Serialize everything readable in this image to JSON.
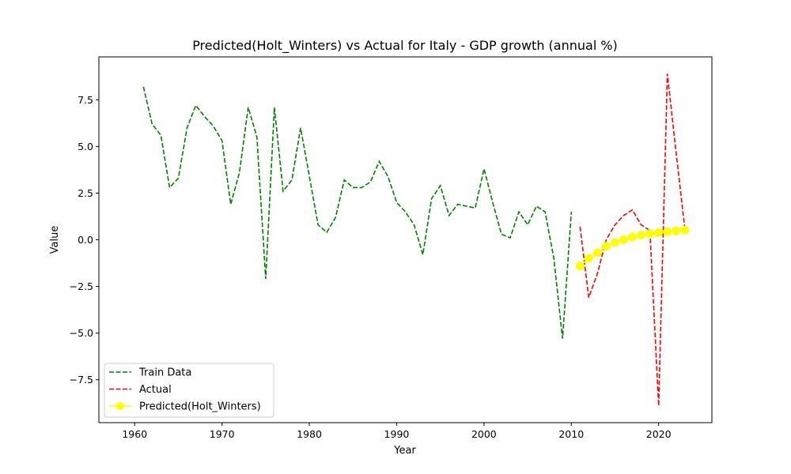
{
  "chart_data": {
    "type": "line",
    "title": "Predicted(Holt_Winters) vs Actual for Italy - GDP growth (annual %)",
    "xlabel": "Year",
    "ylabel": "Value",
    "xlim": [
      1955.9,
      2026.1
    ],
    "ylim": [
      -9.8,
      9.8
    ],
    "x_ticks": [
      1960,
      1970,
      1980,
      1990,
      2000,
      2010,
      2020
    ],
    "y_ticks": [
      -7.5,
      -5.0,
      -2.5,
      0.0,
      2.5,
      5.0,
      7.5
    ],
    "x_tick_labels": [
      "1960",
      "1970",
      "1980",
      "1990",
      "2000",
      "2010",
      "2020"
    ],
    "y_tick_labels": [
      "−7.5",
      "−5.0",
      "−2.5",
      "0.0",
      "2.5",
      "5.0",
      "7.5"
    ],
    "grid": false,
    "legend_position": "lower-left",
    "series": [
      {
        "name": "Train Data",
        "color": "#008000",
        "style": "dashed",
        "x": [
          1961,
          1962,
          1963,
          1964,
          1965,
          1966,
          1967,
          1968,
          1969,
          1970,
          1971,
          1972,
          1973,
          1974,
          1975,
          1976,
          1977,
          1978,
          1979,
          1980,
          1981,
          1982,
          1983,
          1984,
          1985,
          1986,
          1987,
          1988,
          1989,
          1990,
          1991,
          1992,
          1993,
          1994,
          1995,
          1996,
          1997,
          1998,
          1999,
          2000,
          2001,
          2002,
          2003,
          2004,
          2005,
          2006,
          2007,
          2008,
          2009,
          2010
        ],
        "y": [
          8.2,
          6.2,
          5.6,
          2.8,
          3.3,
          6.0,
          7.2,
          6.6,
          6.1,
          5.3,
          1.9,
          3.6,
          7.1,
          5.5,
          -2.1,
          7.1,
          2.6,
          3.2,
          6.0,
          3.4,
          0.8,
          0.4,
          1.2,
          3.2,
          2.8,
          2.8,
          3.1,
          4.2,
          3.4,
          2.0,
          1.5,
          0.8,
          -0.8,
          2.2,
          2.9,
          1.3,
          1.9,
          1.8,
          1.7,
          3.8,
          2.0,
          0.3,
          0.1,
          1.5,
          0.8,
          1.8,
          1.5,
          -1.0,
          -5.3,
          1.5
        ]
      },
      {
        "name": "Actual",
        "color": "#ff0000",
        "style": "dashed",
        "x": [
          2011,
          2012,
          2013,
          2014,
          2015,
          2016,
          2017,
          2018,
          2019,
          2020,
          2021,
          2022,
          2023
        ],
        "y": [
          0.7,
          -3.1,
          -1.8,
          0.0,
          0.8,
          1.3,
          1.6,
          0.8,
          0.5,
          -8.9,
          8.9,
          4.7,
          0.6
        ]
      },
      {
        "name": "Predicted(Holt_Winters)",
        "color": "#ffff00",
        "style": "solid-marker",
        "x": [
          2011,
          2012,
          2013,
          2014,
          2015,
          2016,
          2017,
          2018,
          2019,
          2020,
          2021,
          2022,
          2023
        ],
        "y": [
          -1.4,
          -1.0,
          -0.7,
          -0.35,
          -0.15,
          0.0,
          0.15,
          0.25,
          0.33,
          0.38,
          0.43,
          0.47,
          0.52
        ]
      }
    ]
  }
}
